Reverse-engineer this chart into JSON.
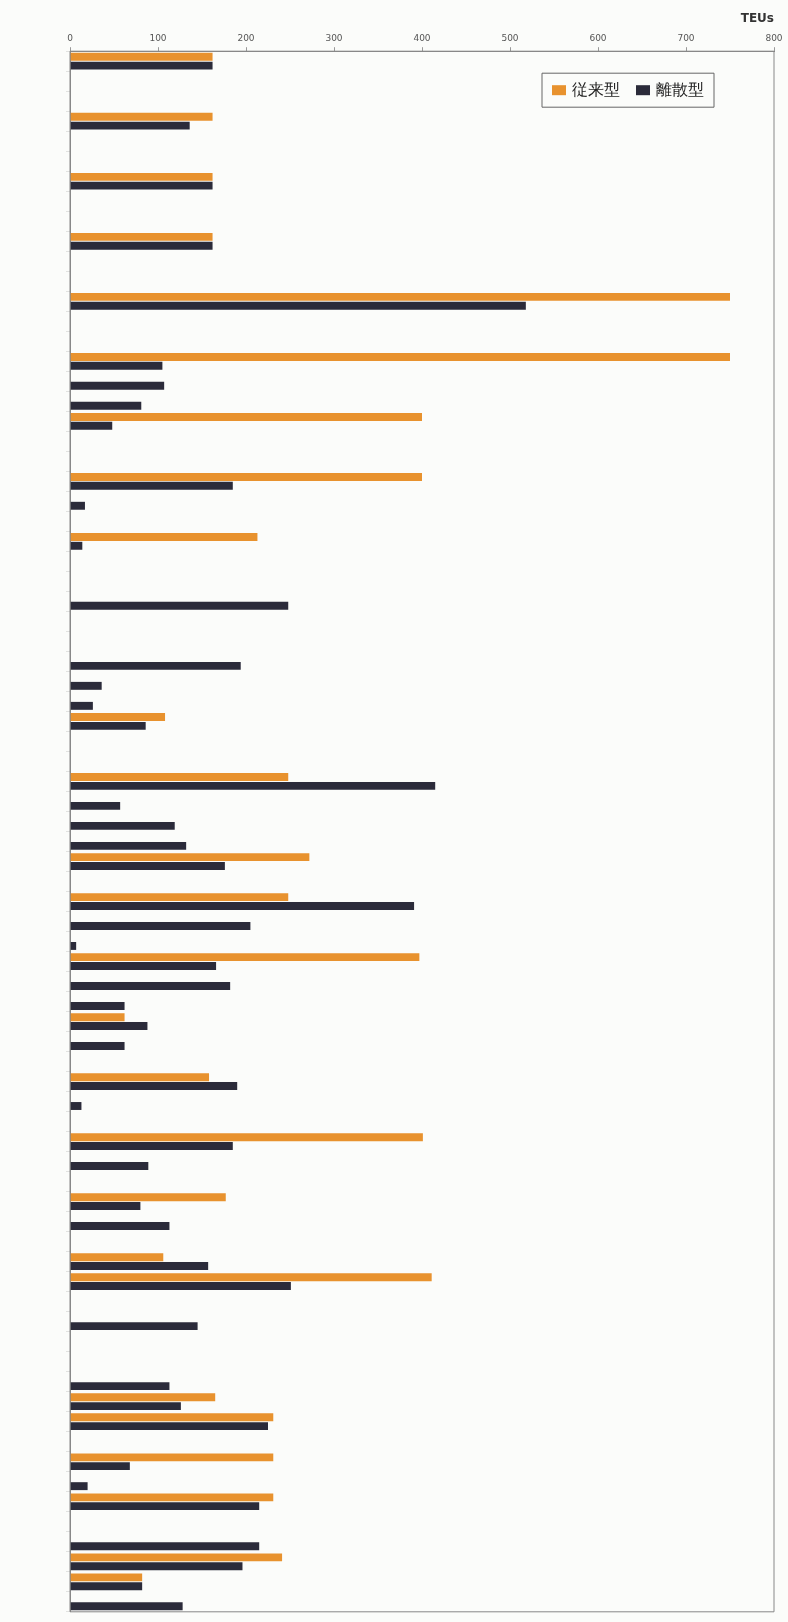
{
  "chart_data": {
    "type": "bar",
    "orientation": "horizontal",
    "xlabel": "TEUs",
    "xlim": [
      0,
      800
    ],
    "xticks": [
      0,
      100,
      200,
      300,
      400,
      500,
      600,
      700,
      800
    ],
    "grid": false,
    "legend": "top right",
    "categories": [
      null,
      null,
      null,
      null,
      null,
      null,
      null,
      null,
      null,
      null,
      null,
      null,
      null,
      null,
      null,
      null,
      null,
      null,
      null,
      null,
      null,
      null,
      null,
      null,
      null,
      null,
      null,
      null,
      null,
      null,
      null,
      null,
      null,
      null,
      null,
      null,
      null,
      null,
      null,
      null,
      null,
      null,
      null,
      null,
      null,
      null,
      null,
      null,
      null,
      null,
      null,
      null,
      null,
      null,
      null,
      null,
      null,
      null,
      null,
      null,
      null,
      null,
      null,
      null,
      null,
      null,
      null,
      null,
      null,
      null,
      null,
      null,
      null,
      null,
      null,
      null,
      null,
      null
    ],
    "series": [
      {
        "name": "従来型",
        "color": "#e8922e",
        "values": [
          162,
          null,
          null,
          162,
          null,
          null,
          162,
          null,
          null,
          162,
          null,
          null,
          750,
          null,
          null,
          750,
          null,
          null,
          400,
          null,
          null,
          400,
          null,
          null,
          213,
          null,
          null,
          null,
          null,
          null,
          null,
          null,
          null,
          108,
          null,
          null,
          248,
          null,
          null,
          null,
          272,
          null,
          248,
          null,
          null,
          397,
          null,
          null,
          62,
          null,
          null,
          158,
          null,
          null,
          401,
          null,
          null,
          177,
          null,
          null,
          106,
          411,
          null,
          null,
          null,
          null,
          null,
          165,
          231,
          null,
          231,
          null,
          231,
          null,
          null,
          241,
          82,
          null
        ]
      },
      {
        "name": "離散型",
        "color": "#2b2b3a",
        "values": [
          162,
          null,
          null,
          136,
          null,
          null,
          162,
          null,
          null,
          162,
          null,
          null,
          518,
          null,
          null,
          105,
          107,
          81,
          48,
          null,
          null,
          185,
          17,
          null,
          14,
          null,
          null,
          248,
          null,
          null,
          194,
          36,
          26,
          86,
          null,
          null,
          415,
          57,
          119,
          132,
          176,
          null,
          391,
          205,
          7,
          166,
          182,
          62,
          88,
          62,
          null,
          190,
          13,
          null,
          185,
          89,
          null,
          80,
          113,
          null,
          157,
          251,
          null,
          145,
          null,
          null,
          113,
          126,
          225,
          null,
          68,
          20,
          215,
          null,
          215,
          196,
          82,
          128
        ]
      }
    ]
  }
}
